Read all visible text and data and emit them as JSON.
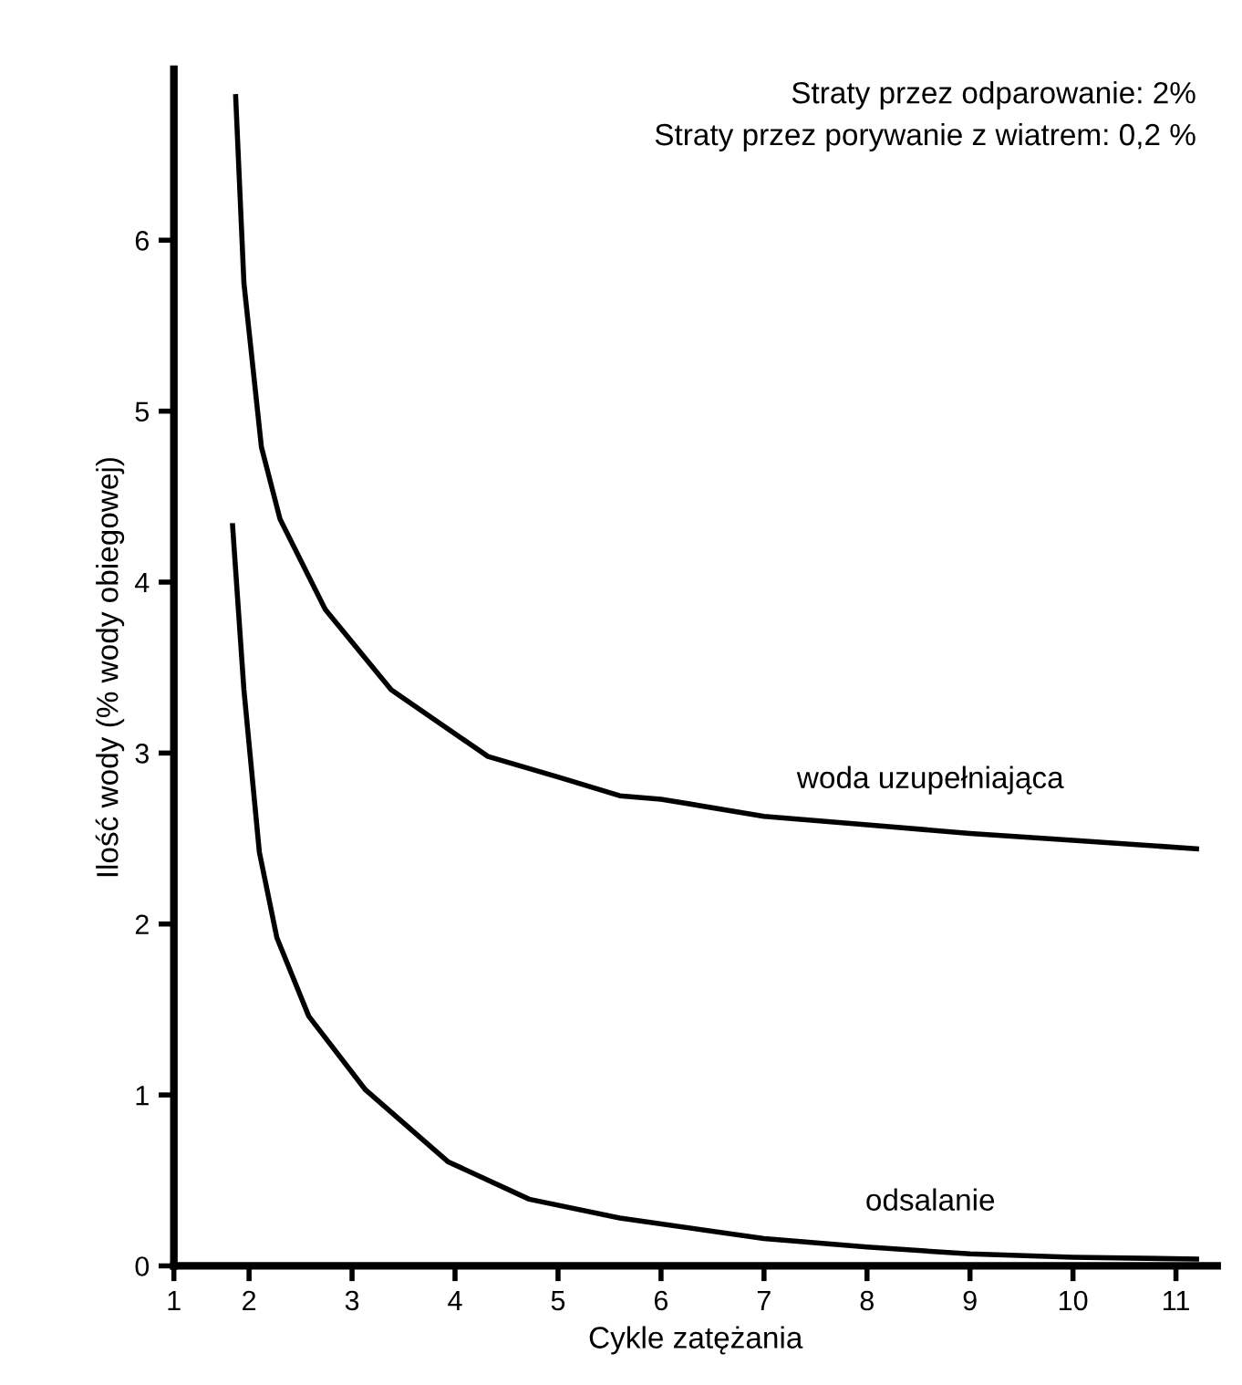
{
  "chart_data": {
    "type": "line",
    "xlabel": "Cykle zatężania",
    "ylabel": "Ilość wody (% wody obiegowej)",
    "xlim": [
      1.27,
      11.4
    ],
    "ylim": [
      0,
      7
    ],
    "xticks": [
      {
        "value": 1.27,
        "label": "1"
      },
      2,
      3,
      4,
      5,
      6,
      7,
      8,
      9,
      10,
      11
    ],
    "yticks": [
      0,
      1,
      2,
      3,
      4,
      5,
      6
    ],
    "grid": false,
    "marker": "none",
    "line_style": "solid",
    "series": [
      {
        "name": "woda uzupełniająca",
        "color": "#000000",
        "x": [
          1.87,
          1.95,
          2.12,
          2.3,
          2.74,
          3.38,
          4.32,
          5,
          5.6,
          6,
          7,
          8,
          9,
          10,
          11.2
        ],
        "values": [
          6.84,
          5.75,
          4.79,
          4.37,
          3.84,
          3.37,
          2.98,
          2.86,
          2.75,
          2.73,
          2.63,
          2.58,
          2.53,
          2.49,
          2.44
        ]
      },
      {
        "name": "odsalanie",
        "color": "#000000",
        "x": [
          1.84,
          1.95,
          2.1,
          2.27,
          2.58,
          3.13,
          3.93,
          4.72,
          5.6,
          7,
          8,
          9,
          10,
          11.2
        ],
        "values": [
          4.33,
          3.37,
          2.42,
          1.92,
          1.46,
          1.03,
          0.61,
          0.39,
          0.28,
          0.16,
          0.11,
          0.07,
          0.05,
          0.04
        ]
      }
    ],
    "annotations": [
      "Straty przez odparowanie: 2%",
      "Straty przez porywanie z wiatrem: 0,2 %"
    ]
  }
}
